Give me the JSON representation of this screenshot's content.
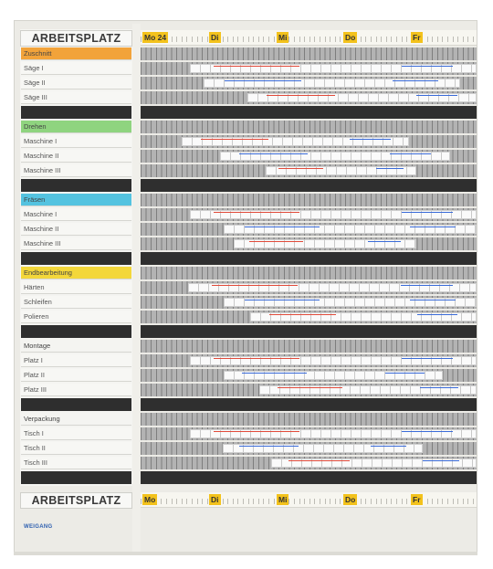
{
  "header": {
    "title": "ARBEITSPLATZ"
  },
  "footer": {
    "title": "ARBEITSPLATZ",
    "brand": "WEIGANG"
  },
  "days": [
    "Mo 24",
    "Di",
    "Mi",
    "Do",
    "Fr"
  ],
  "days_bottom": [
    "Mo",
    "Di",
    "Mi",
    "Do",
    "Fr"
  ],
  "groups": [
    {
      "name": "Zuschnitt",
      "color": "#f2a33a",
      "rows": [
        "Säge I",
        "Säge II",
        "Säge III"
      ]
    },
    {
      "name": "Drehen",
      "color": "#8fd47f",
      "rows": [
        "Maschine I",
        "Maschine II",
        "Maschine III"
      ]
    },
    {
      "name": "Fräsen",
      "color": "#54c3e0",
      "rows": [
        "Maschine I",
        "Maschine II",
        "Maschine III"
      ]
    },
    {
      "name": "Endbearbeitung",
      "color": "#f3d73a",
      "rows": [
        "Härten",
        "Schleifen",
        "Polieren"
      ]
    },
    {
      "name": "Montage",
      "color": "#f4f4f1",
      "rows": [
        "Platz I",
        "Platz II",
        "Platz III"
      ]
    },
    {
      "name": "Verpackung",
      "color": "#f4f4f1",
      "rows": [
        "Tisch I",
        "Tisch II",
        "Tisch III"
      ]
    }
  ]
}
